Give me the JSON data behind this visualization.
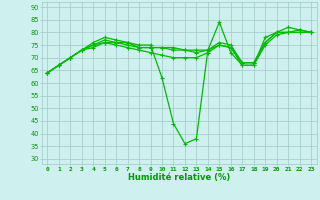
{
  "xlabel": "Humidité relative (%)",
  "xlim": [
    -0.5,
    23.5
  ],
  "ylim": [
    28,
    92
  ],
  "yticks": [
    30,
    35,
    40,
    45,
    50,
    55,
    60,
    65,
    70,
    75,
    80,
    85,
    90
  ],
  "xticks": [
    0,
    1,
    2,
    3,
    4,
    5,
    6,
    7,
    8,
    9,
    10,
    11,
    12,
    13,
    14,
    15,
    16,
    17,
    18,
    19,
    20,
    21,
    22,
    23
  ],
  "background_color": "#cef0ee",
  "grid_color": "#a0c8c8",
  "line_color": "#00bb00",
  "lines": [
    [
      64,
      67,
      70,
      73,
      76,
      78,
      77,
      76,
      75,
      75,
      62,
      44,
      36,
      38,
      73,
      84,
      72,
      67,
      67,
      78,
      80,
      82,
      81,
      80
    ],
    [
      64,
      67,
      70,
      73,
      75,
      76,
      76,
      75,
      74,
      74,
      74,
      74,
      73,
      73,
      73,
      76,
      75,
      68,
      68,
      76,
      80,
      80,
      80,
      80
    ],
    [
      64,
      67,
      70,
      73,
      75,
      77,
      76,
      76,
      74,
      74,
      74,
      73,
      73,
      72,
      73,
      75,
      74,
      68,
      68,
      76,
      80,
      80,
      81,
      80
    ],
    [
      64,
      67,
      70,
      73,
      74,
      76,
      75,
      74,
      73,
      72,
      71,
      70,
      70,
      70,
      72,
      75,
      74,
      67,
      67,
      75,
      79,
      80,
      80,
      80
    ]
  ]
}
